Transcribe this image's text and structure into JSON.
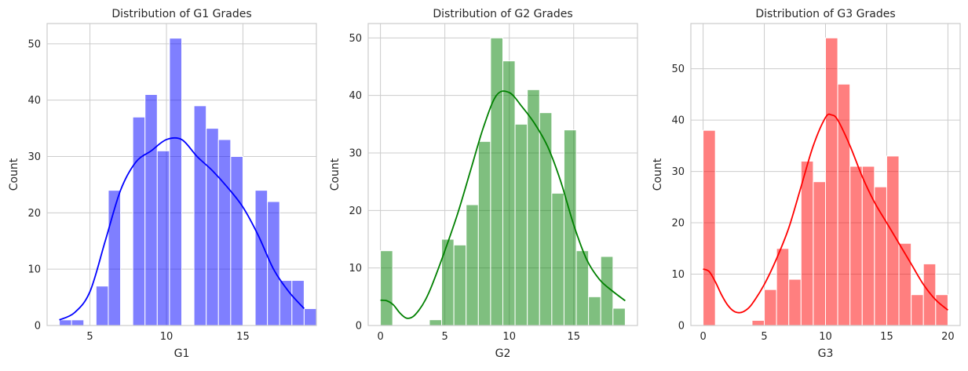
{
  "chart_data": [
    {
      "type": "histogram",
      "title": "Distribution of G1 Grades",
      "xlabel": "G1",
      "ylabel": "Count",
      "color": "#0000ff",
      "bar_alpha": 0.5,
      "kde": true,
      "xlim": [
        2.2,
        19.8
      ],
      "ylim": [
        0,
        53.6
      ],
      "xticks": [
        5,
        10,
        15
      ],
      "yticks": [
        0,
        10,
        20,
        30,
        40,
        50
      ],
      "bins": [
        {
          "x0": 3.0,
          "x1": 3.8,
          "count": 1
        },
        {
          "x0": 3.8,
          "x1": 4.6,
          "count": 1
        },
        {
          "x0": 4.6,
          "x1": 5.4,
          "count": 0
        },
        {
          "x0": 5.4,
          "x1": 6.2,
          "count": 7
        },
        {
          "x0": 6.2,
          "x1": 7.0,
          "count": 24
        },
        {
          "x0": 7.0,
          "x1": 7.8,
          "count": 0
        },
        {
          "x0": 7.8,
          "x1": 8.6,
          "count": 37
        },
        {
          "x0": 8.6,
          "x1": 9.4,
          "count": 41
        },
        {
          "x0": 9.4,
          "x1": 10.2,
          "count": 31
        },
        {
          "x0": 10.2,
          "x1": 11.0,
          "count": 51
        },
        {
          "x0": 11.0,
          "x1": 11.8,
          "count": 0
        },
        {
          "x0": 11.8,
          "x1": 12.6,
          "count": 39
        },
        {
          "x0": 12.6,
          "x1": 13.4,
          "count": 35
        },
        {
          "x0": 13.4,
          "x1": 14.2,
          "count": 33
        },
        {
          "x0": 14.2,
          "x1": 15.0,
          "count": 30
        },
        {
          "x0": 15.0,
          "x1": 15.8,
          "count": 0
        },
        {
          "x0": 15.8,
          "x1": 16.6,
          "count": 24
        },
        {
          "x0": 16.6,
          "x1": 17.4,
          "count": 22
        },
        {
          "x0": 17.4,
          "x1": 18.2,
          "count": 8
        },
        {
          "x0": 18.2,
          "x1": 19.0,
          "count": 8
        },
        {
          "x0": 19.0,
          "x1": 19.8,
          "count": 3
        }
      ],
      "kde_points": [
        [
          3,
          1
        ],
        [
          4,
          2.3
        ],
        [
          5,
          6
        ],
        [
          6,
          15
        ],
        [
          7,
          24
        ],
        [
          8,
          29
        ],
        [
          9,
          31
        ],
        [
          10,
          33
        ],
        [
          11,
          33
        ],
        [
          12,
          30
        ],
        [
          13,
          27.5
        ],
        [
          14,
          24.5
        ],
        [
          15,
          21
        ],
        [
          16,
          16
        ],
        [
          17,
          10
        ],
        [
          18,
          6
        ],
        [
          19,
          3
        ]
      ]
    },
    {
      "type": "histogram",
      "title": "Distribution of G2 Grades",
      "xlabel": "G2",
      "ylabel": "Count",
      "color": "#008000",
      "bar_alpha": 0.5,
      "kde": true,
      "xlim": [
        -0.95,
        19.95
      ],
      "ylim": [
        0,
        52.5
      ],
      "xticks": [
        0,
        5,
        10,
        15
      ],
      "yticks": [
        0,
        10,
        20,
        30,
        40,
        50
      ],
      "bins": [
        {
          "x0": 0.0,
          "x1": 0.95,
          "count": 13
        },
        {
          "x0": 0.95,
          "x1": 1.9,
          "count": 0
        },
        {
          "x0": 1.9,
          "x1": 2.85,
          "count": 0
        },
        {
          "x0": 2.85,
          "x1": 3.8,
          "count": 0
        },
        {
          "x0": 3.8,
          "x1": 4.75,
          "count": 1
        },
        {
          "x0": 4.75,
          "x1": 5.7,
          "count": 15
        },
        {
          "x0": 5.7,
          "x1": 6.65,
          "count": 14
        },
        {
          "x0": 6.65,
          "x1": 7.6,
          "count": 21
        },
        {
          "x0": 7.6,
          "x1": 8.55,
          "count": 32
        },
        {
          "x0": 8.55,
          "x1": 9.5,
          "count": 50
        },
        {
          "x0": 9.5,
          "x1": 10.45,
          "count": 46
        },
        {
          "x0": 10.45,
          "x1": 11.4,
          "count": 35
        },
        {
          "x0": 11.4,
          "x1": 12.35,
          "count": 41
        },
        {
          "x0": 12.35,
          "x1": 13.3,
          "count": 37
        },
        {
          "x0": 13.3,
          "x1": 14.25,
          "count": 23
        },
        {
          "x0": 14.25,
          "x1": 15.2,
          "count": 34
        },
        {
          "x0": 15.2,
          "x1": 16.15,
          "count": 13
        },
        {
          "x0": 16.15,
          "x1": 17.1,
          "count": 5
        },
        {
          "x0": 17.1,
          "x1": 18.05,
          "count": 12
        },
        {
          "x0": 18.05,
          "x1": 19.0,
          "count": 3
        }
      ],
      "kde_points": [
        [
          0,
          4.4
        ],
        [
          0.5,
          4.3
        ],
        [
          1,
          3.6
        ],
        [
          1.5,
          2.2
        ],
        [
          2,
          1.3
        ],
        [
          2.5,
          1.5
        ],
        [
          3,
          2.7
        ],
        [
          3.5,
          4.5
        ],
        [
          4,
          7
        ],
        [
          5,
          13
        ],
        [
          6,
          19.5
        ],
        [
          7,
          27
        ],
        [
          8,
          34.5
        ],
        [
          9,
          40
        ],
        [
          10,
          40.5
        ],
        [
          11,
          38
        ],
        [
          12,
          35
        ],
        [
          13,
          31
        ],
        [
          14,
          25
        ],
        [
          15,
          17.5
        ],
        [
          16,
          11.5
        ],
        [
          17,
          8
        ],
        [
          18,
          6
        ],
        [
          19,
          4.3
        ]
      ]
    },
    {
      "type": "histogram",
      "title": "Distribution of G3 Grades",
      "xlabel": "G3",
      "ylabel": "Count",
      "color": "#ff0000",
      "bar_alpha": 0.5,
      "kde": true,
      "xlim": [
        -1.0,
        21.0
      ],
      "ylim": [
        0,
        58.8
      ],
      "xticks": [
        0,
        5,
        10,
        15,
        20
      ],
      "yticks": [
        0,
        10,
        20,
        30,
        40,
        50
      ],
      "bins": [
        {
          "x0": 0.0,
          "x1": 1.0,
          "count": 38
        },
        {
          "x0": 1.0,
          "x1": 2.0,
          "count": 0
        },
        {
          "x0": 2.0,
          "x1": 3.0,
          "count": 0
        },
        {
          "x0": 3.0,
          "x1": 4.0,
          "count": 0
        },
        {
          "x0": 4.0,
          "x1": 5.0,
          "count": 1
        },
        {
          "x0": 5.0,
          "x1": 6.0,
          "count": 7
        },
        {
          "x0": 6.0,
          "x1": 7.0,
          "count": 15
        },
        {
          "x0": 7.0,
          "x1": 8.0,
          "count": 9
        },
        {
          "x0": 8.0,
          "x1": 9.0,
          "count": 32
        },
        {
          "x0": 9.0,
          "x1": 10.0,
          "count": 28
        },
        {
          "x0": 10.0,
          "x1": 11.0,
          "count": 56
        },
        {
          "x0": 11.0,
          "x1": 12.0,
          "count": 47
        },
        {
          "x0": 12.0,
          "x1": 13.0,
          "count": 31
        },
        {
          "x0": 13.0,
          "x1": 14.0,
          "count": 31
        },
        {
          "x0": 14.0,
          "x1": 15.0,
          "count": 27
        },
        {
          "x0": 15.0,
          "x1": 16.0,
          "count": 33
        },
        {
          "x0": 16.0,
          "x1": 17.0,
          "count": 16
        },
        {
          "x0": 17.0,
          "x1": 18.0,
          "count": 6
        },
        {
          "x0": 18.0,
          "x1": 19.0,
          "count": 12
        },
        {
          "x0": 19.0,
          "x1": 20.0,
          "count": 6
        }
      ],
      "kde_points": [
        [
          0,
          11
        ],
        [
          0.5,
          10.5
        ],
        [
          1,
          8.5
        ],
        [
          1.5,
          6
        ],
        [
          2,
          4
        ],
        [
          2.5,
          2.8
        ],
        [
          3,
          2.5
        ],
        [
          3.5,
          3
        ],
        [
          4,
          4.2
        ],
        [
          5,
          8
        ],
        [
          6,
          13
        ],
        [
          7,
          19
        ],
        [
          8,
          27
        ],
        [
          9,
          35
        ],
        [
          10,
          40.5
        ],
        [
          10.5,
          41
        ],
        [
          11,
          40
        ],
        [
          12,
          35
        ],
        [
          13,
          29
        ],
        [
          14,
          24
        ],
        [
          15,
          20
        ],
        [
          16,
          16
        ],
        [
          17,
          12
        ],
        [
          18,
          8
        ],
        [
          19,
          5
        ],
        [
          20,
          3
        ]
      ]
    }
  ]
}
